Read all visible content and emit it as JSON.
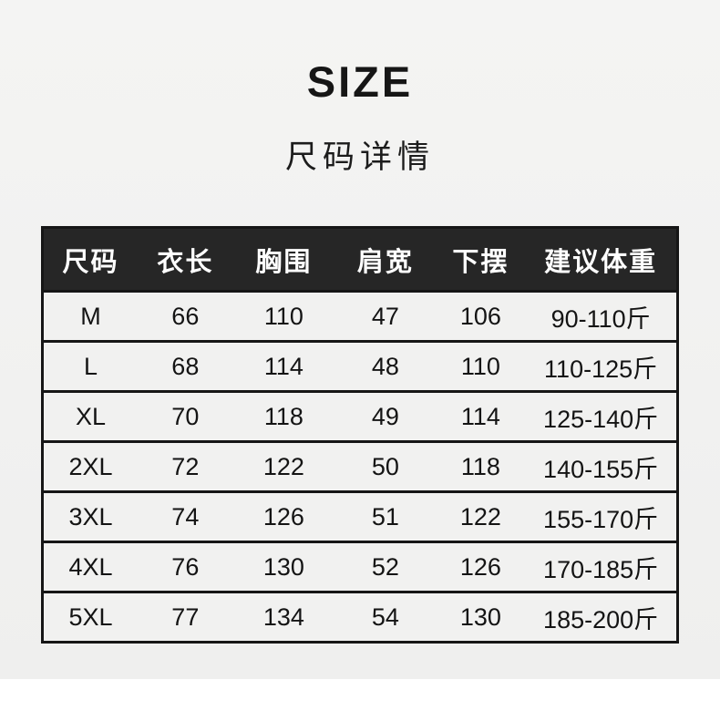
{
  "page": {
    "background_color": "#f2f2f1",
    "header_bg_color": "#262626",
    "header_text_color": "#ffffff",
    "row_bg_color": "#f1f1f0",
    "border_color": "#161616"
  },
  "title": "SIZE",
  "subtitle": "尺码详情",
  "table": {
    "columns": [
      "尺码",
      "衣长",
      "胸围",
      "肩宽",
      "下摆",
      "建议体重"
    ],
    "rows": [
      [
        "M",
        "66",
        "110",
        "47",
        "106",
        "90-110斤"
      ],
      [
        "L",
        "68",
        "114",
        "48",
        "110",
        "110-125斤"
      ],
      [
        "XL",
        "70",
        "118",
        "49",
        "114",
        "125-140斤"
      ],
      [
        "2XL",
        "72",
        "122",
        "50",
        "118",
        "140-155斤"
      ],
      [
        "3XL",
        "74",
        "126",
        "51",
        "122",
        "155-170斤"
      ],
      [
        "4XL",
        "76",
        "130",
        "52",
        "126",
        "170-185斤"
      ],
      [
        "5XL",
        "77",
        "134",
        "54",
        "130",
        "185-200斤"
      ]
    ]
  }
}
